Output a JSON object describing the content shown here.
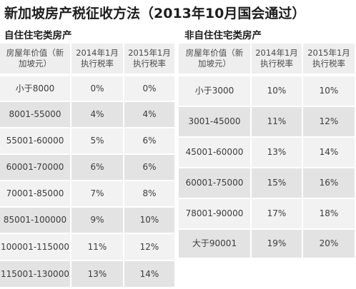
{
  "title": "新加坡房产税征收方法（2013年10月国会通过）",
  "owner_occupied": {
    "section_title": "自住住宅类房产",
    "headers": [
      "房屋年价值（新加坡元）",
      "2014年1月执行税率",
      "2015年1月执行税率"
    ],
    "rows": [
      [
        "小于8000",
        "0%",
        "0%"
      ],
      [
        "8001-55000",
        "4%",
        "4%"
      ],
      [
        "55001-60000",
        "5%",
        "6%"
      ],
      [
        "60001-70000",
        "6%",
        "6%"
      ],
      [
        "70001-85000",
        "7%",
        "8%"
      ],
      [
        "85001-100000",
        "9%",
        "10%"
      ],
      [
        "100001-115000",
        "11%",
        "12%"
      ],
      [
        "115001-130000",
        "13%",
        "14%"
      ]
    ]
  },
  "non_owner_occupied": {
    "section_title": "非自住住宅类房产",
    "headers": [
      "房屋年价值（新加坡元）",
      "2014年1月执行税率",
      "2015年1月执行税率"
    ],
    "rows": [
      [
        "小于3000",
        "10%",
        "10%"
      ],
      [
        "3001-45000",
        "11%",
        "12%"
      ],
      [
        "45001-60000",
        "13%",
        "14%"
      ],
      [
        "60001-75000",
        "15%",
        "16%"
      ],
      [
        "78001-90000",
        "17%",
        "18%"
      ],
      [
        "大于90001",
        "19%",
        "20%"
      ]
    ]
  }
}
